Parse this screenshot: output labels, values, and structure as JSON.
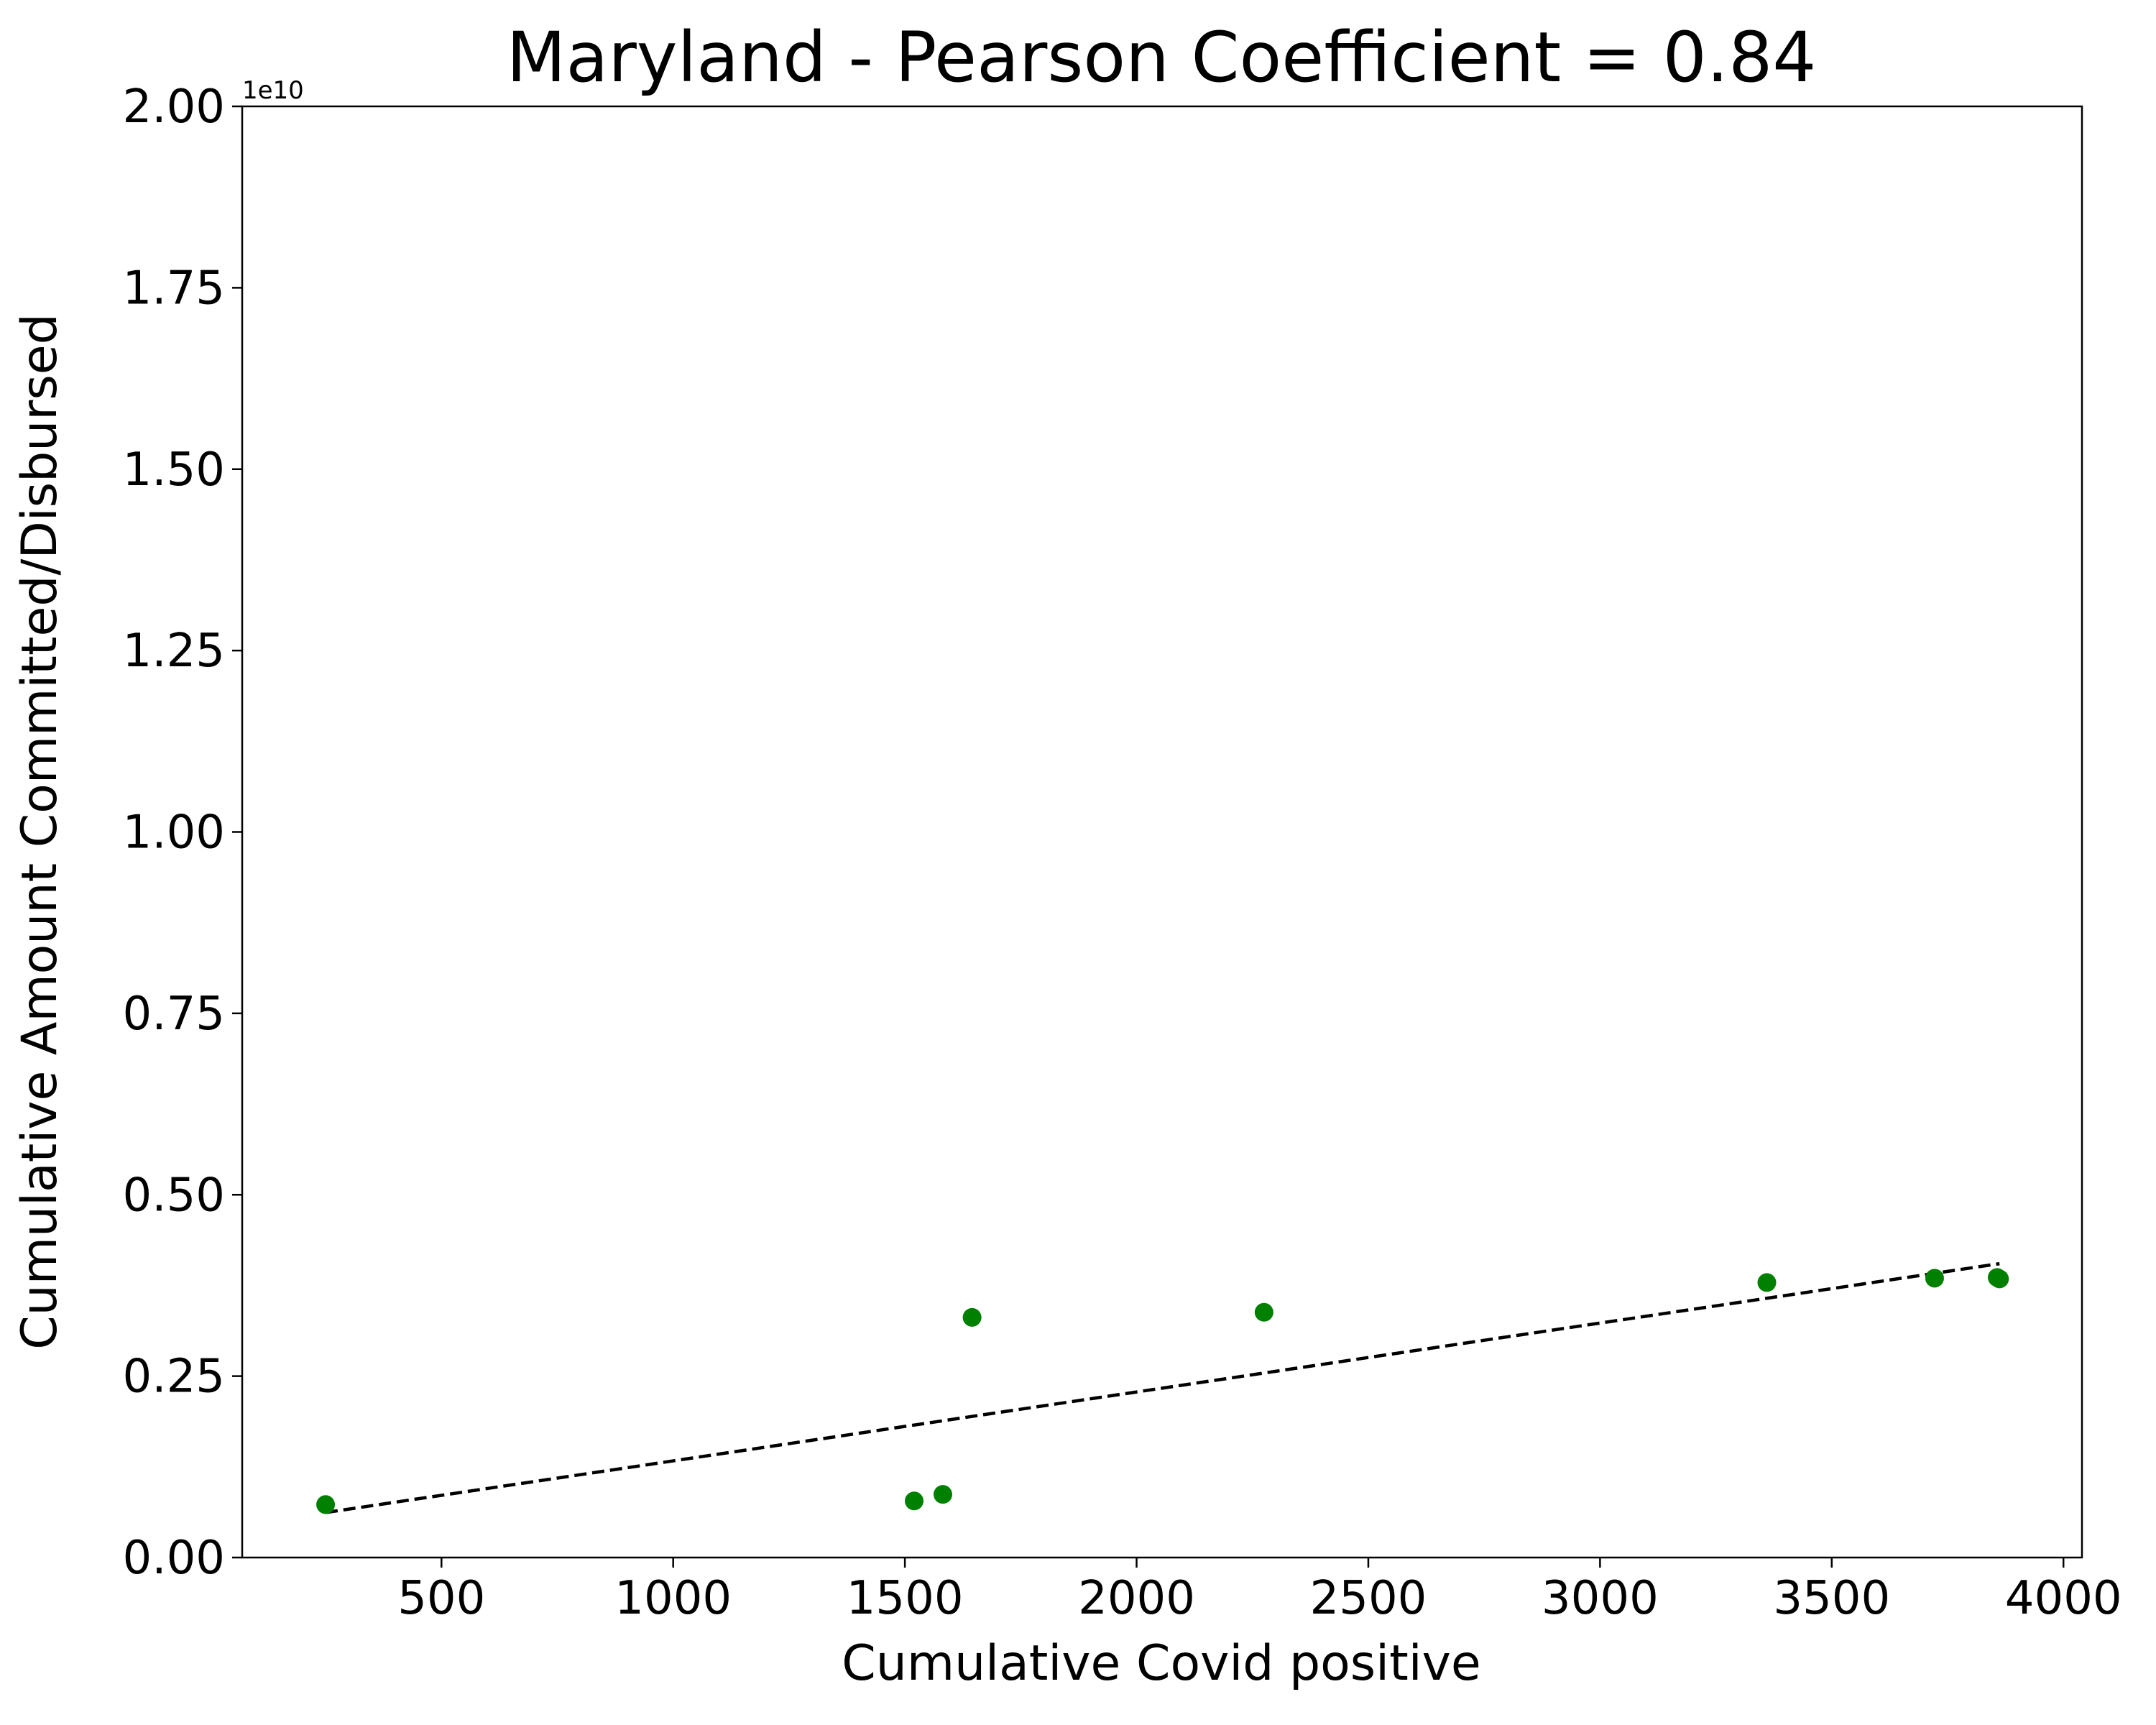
{
  "chart_data": {
    "type": "scatter",
    "title": "Maryland - Pearson Coefficient = 0.84",
    "xlabel": "Cumulative Covid positive",
    "ylabel": "Cumulative Amount Committed/Disbursed",
    "y_offset_label": "1e10",
    "xlim": [
      70,
      4040
    ],
    "ylim": [
      0,
      2.0
    ],
    "y_scale_factor": 10000000000.0,
    "xticks": [
      500,
      1000,
      1500,
      2000,
      2500,
      3000,
      3500,
      4000
    ],
    "xtick_labels": [
      "500",
      "1000",
      "1500",
      "2000",
      "2500",
      "3000",
      "3500",
      "4000"
    ],
    "yticks": [
      0,
      0.25,
      0.5,
      0.75,
      1.0,
      1.25,
      1.5,
      1.75,
      2.0
    ],
    "ytick_labels": [
      "0.00",
      "0.25",
      "0.50",
      "0.75",
      "1.00",
      "1.25",
      "1.50",
      "1.75",
      "2.00"
    ],
    "grid": false,
    "points_color": "#008000",
    "points": [
      {
        "x": 250,
        "y": 0.073
      },
      {
        "x": 1520,
        "y": 0.078
      },
      {
        "x": 1582,
        "y": 0.087
      },
      {
        "x": 1645,
        "y": 0.331
      },
      {
        "x": 2275,
        "y": 0.338
      },
      {
        "x": 3360,
        "y": 0.379
      },
      {
        "x": 3722,
        "y": 0.385
      },
      {
        "x": 3857,
        "y": 0.386
      },
      {
        "x": 3862,
        "y": 0.384
      }
    ],
    "trendline": {
      "style": "dashed",
      "color": "#000000",
      "x": [
        250,
        3862
      ],
      "y": [
        0.062,
        0.405
      ]
    }
  }
}
